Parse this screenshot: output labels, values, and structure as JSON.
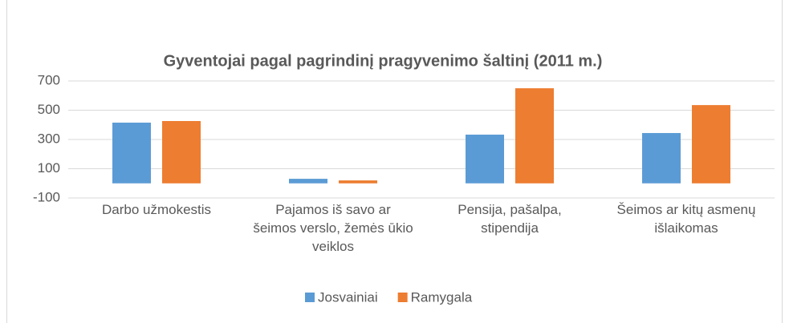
{
  "chart_data": {
    "type": "bar",
    "title": "Gyventojai pagal pagrindinį pragyvenimo šaltinį (2011 m.)",
    "categories": [
      "Darbo užmokestis",
      "Pajamos iš savo ar šeimos verslo, žemės ūkio veiklos",
      "Pensija, pašalpa, stipendija",
      "Šeimos ar kitų asmenų išlaikomas"
    ],
    "series": [
      {
        "name": "Josvainiai",
        "color": "#5b9bd5",
        "values": [
          415,
          31,
          333,
          344
        ]
      },
      {
        "name": "Ramygala",
        "color": "#ed7d31",
        "values": [
          426,
          20,
          650,
          535
        ]
      }
    ],
    "ylim": [
      -100,
      700
    ],
    "yticks": [
      -100,
      100,
      300,
      500,
      700
    ],
    "grid": true,
    "legend": "bottom"
  }
}
